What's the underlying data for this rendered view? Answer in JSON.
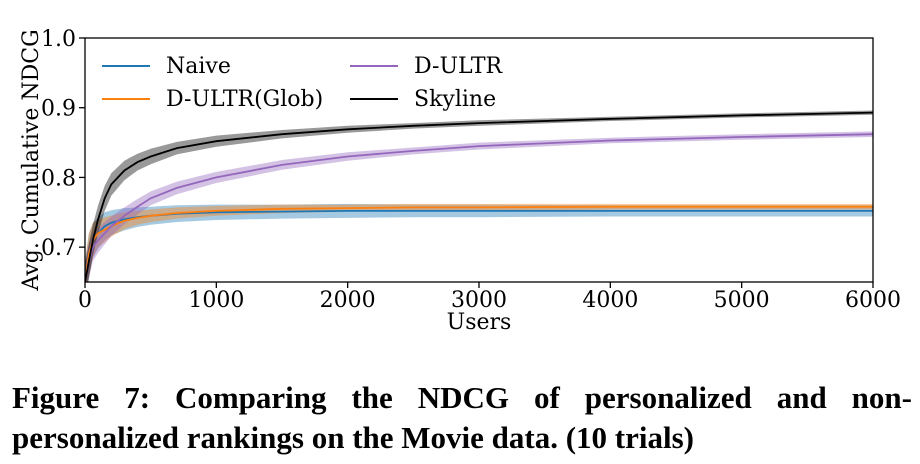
{
  "chart_data": {
    "type": "line",
    "xlabel": "Users",
    "ylabel": "Avg. Cumulative NDCG",
    "xlim": [
      0,
      6000
    ],
    "ylim": [
      0.65,
      1.0
    ],
    "xticks": [
      0,
      1000,
      2000,
      3000,
      4000,
      5000,
      6000
    ],
    "yticks": [
      0.7,
      0.8,
      0.9,
      1.0
    ],
    "xtick_labels": [
      "0",
      "1000",
      "2000",
      "3000",
      "4000",
      "5000",
      "6000"
    ],
    "ytick_labels": [
      "0.7",
      "0.8",
      "0.9",
      "1.0"
    ],
    "grid": false,
    "legend": "top-left, two columns",
    "series": [
      {
        "name": "Naive",
        "color": "#1f77b4",
        "x": [
          0,
          30,
          60,
          100,
          150,
          200,
          300,
          400,
          500,
          700,
          1000,
          1500,
          2000,
          2500,
          3000,
          4000,
          5000,
          6000
        ],
        "y": [
          0.65,
          0.69,
          0.71,
          0.72,
          0.73,
          0.735,
          0.74,
          0.743,
          0.745,
          0.748,
          0.75,
          0.751,
          0.752,
          0.752,
          0.752,
          0.752,
          0.752,
          0.752
        ],
        "band": [
          0.03,
          0.03,
          0.025,
          0.022,
          0.02,
          0.018,
          0.016,
          0.014,
          0.013,
          0.012,
          0.011,
          0.01,
          0.01,
          0.009,
          0.009,
          0.008,
          0.008,
          0.008
        ]
      },
      {
        "name": "D-ULTR(Glob)",
        "color": "#ff7f0e",
        "x": [
          0,
          30,
          60,
          100,
          150,
          200,
          300,
          400,
          500,
          700,
          1000,
          1500,
          2000,
          2500,
          3000,
          4000,
          5000,
          6000
        ],
        "y": [
          0.65,
          0.69,
          0.71,
          0.72,
          0.725,
          0.73,
          0.738,
          0.742,
          0.745,
          0.749,
          0.752,
          0.755,
          0.756,
          0.757,
          0.757,
          0.758,
          0.758,
          0.758
        ],
        "band": [
          0.03,
          0.03,
          0.025,
          0.02,
          0.018,
          0.015,
          0.012,
          0.01,
          0.009,
          0.008,
          0.007,
          0.006,
          0.005,
          0.005,
          0.005,
          0.004,
          0.004,
          0.004
        ]
      },
      {
        "name": "D-ULTR",
        "color": "#9467bd",
        "x": [
          0,
          30,
          60,
          100,
          150,
          200,
          300,
          400,
          500,
          700,
          1000,
          1500,
          2000,
          2500,
          3000,
          4000,
          5000,
          6000
        ],
        "y": [
          0.65,
          0.68,
          0.7,
          0.71,
          0.72,
          0.73,
          0.745,
          0.758,
          0.77,
          0.785,
          0.8,
          0.818,
          0.83,
          0.838,
          0.845,
          0.853,
          0.858,
          0.862
        ],
        "band": [
          0.03,
          0.025,
          0.02,
          0.018,
          0.016,
          0.014,
          0.012,
          0.011,
          0.01,
          0.009,
          0.008,
          0.007,
          0.006,
          0.005,
          0.005,
          0.004,
          0.004,
          0.004
        ]
      },
      {
        "name": "Skyline",
        "color": "#000000",
        "x": [
          0,
          30,
          60,
          100,
          150,
          200,
          300,
          400,
          500,
          700,
          1000,
          1500,
          2000,
          2500,
          3000,
          4000,
          5000,
          6000
        ],
        "y": [
          0.65,
          0.68,
          0.71,
          0.74,
          0.77,
          0.79,
          0.81,
          0.822,
          0.83,
          0.842,
          0.852,
          0.862,
          0.869,
          0.874,
          0.878,
          0.884,
          0.889,
          0.893
        ],
        "band": [
          0.025,
          0.025,
          0.022,
          0.02,
          0.018,
          0.016,
          0.014,
          0.012,
          0.011,
          0.009,
          0.008,
          0.006,
          0.005,
          0.004,
          0.004,
          0.003,
          0.003,
          0.003
        ]
      }
    ]
  },
  "caption": "Figure 7: Comparing the NDCG of personalized and non-personalized rankings on the Movie data. (10 trials)"
}
